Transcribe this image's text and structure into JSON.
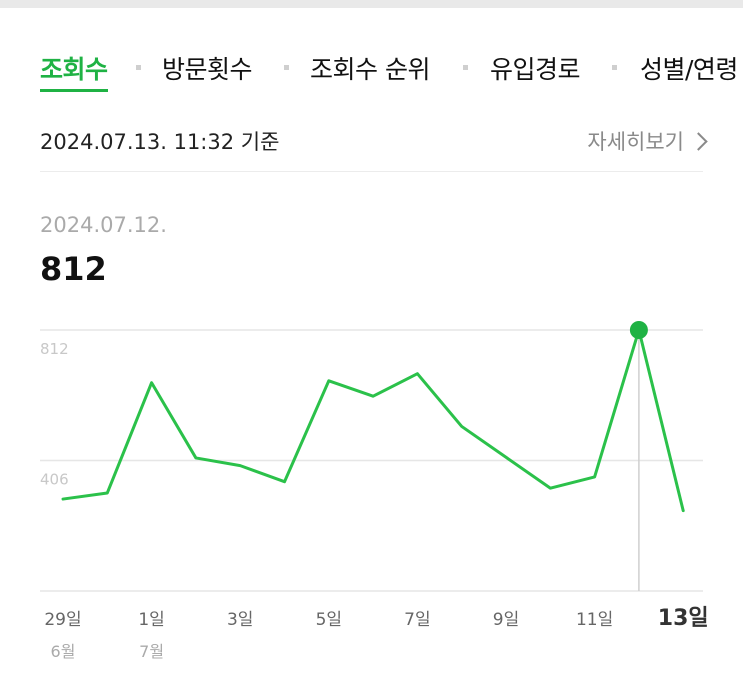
{
  "tabs": [
    {
      "label": "조회수",
      "active": true
    },
    {
      "label": "방문횟수",
      "active": false
    },
    {
      "label": "조회수 순위",
      "active": false
    },
    {
      "label": "유입경로",
      "active": false
    },
    {
      "label": "성별/연령",
      "active": false
    }
  ],
  "header": {
    "basis_text": "2024.07.13. 11:32 기준",
    "detail_link": "자세히보기"
  },
  "selected": {
    "date": "2024.07.12.",
    "value": "812"
  },
  "colors": {
    "accent": "#1fb244",
    "line": "#2bc14a",
    "grid": "#e6e6e6",
    "muted": "#9a9a9a"
  },
  "chart_data": {
    "type": "line",
    "x": [
      "6/29",
      "6/30",
      "7/1",
      "7/2",
      "7/3",
      "7/4",
      "7/5",
      "7/6",
      "7/7",
      "7/8",
      "7/9",
      "7/10",
      "7/11",
      "7/12",
      "7/13"
    ],
    "tick_labels": [
      {
        "index": 0,
        "day": "29일",
        "month": "6월"
      },
      {
        "index": 2,
        "day": "1일",
        "month": "7월"
      },
      {
        "index": 4,
        "day": "3일",
        "month": ""
      },
      {
        "index": 6,
        "day": "5일",
        "month": ""
      },
      {
        "index": 8,
        "day": "7일",
        "month": ""
      },
      {
        "index": 10,
        "day": "9일",
        "month": ""
      },
      {
        "index": 12,
        "day": "11일",
        "month": ""
      },
      {
        "index": 14,
        "day": "13일",
        "month": "",
        "bold": true
      }
    ],
    "series": [
      {
        "values": [
          286,
          305,
          648,
          414,
          390,
          340,
          654,
          606,
          676,
          512,
          416,
          320,
          355,
          812,
          250
        ]
      }
    ],
    "y_ticks": [
      406,
      812
    ],
    "ylim": [
      0,
      812
    ],
    "highlight_index": 13,
    "grid": true,
    "xlabel": "",
    "ylabel": "",
    "title": ""
  }
}
